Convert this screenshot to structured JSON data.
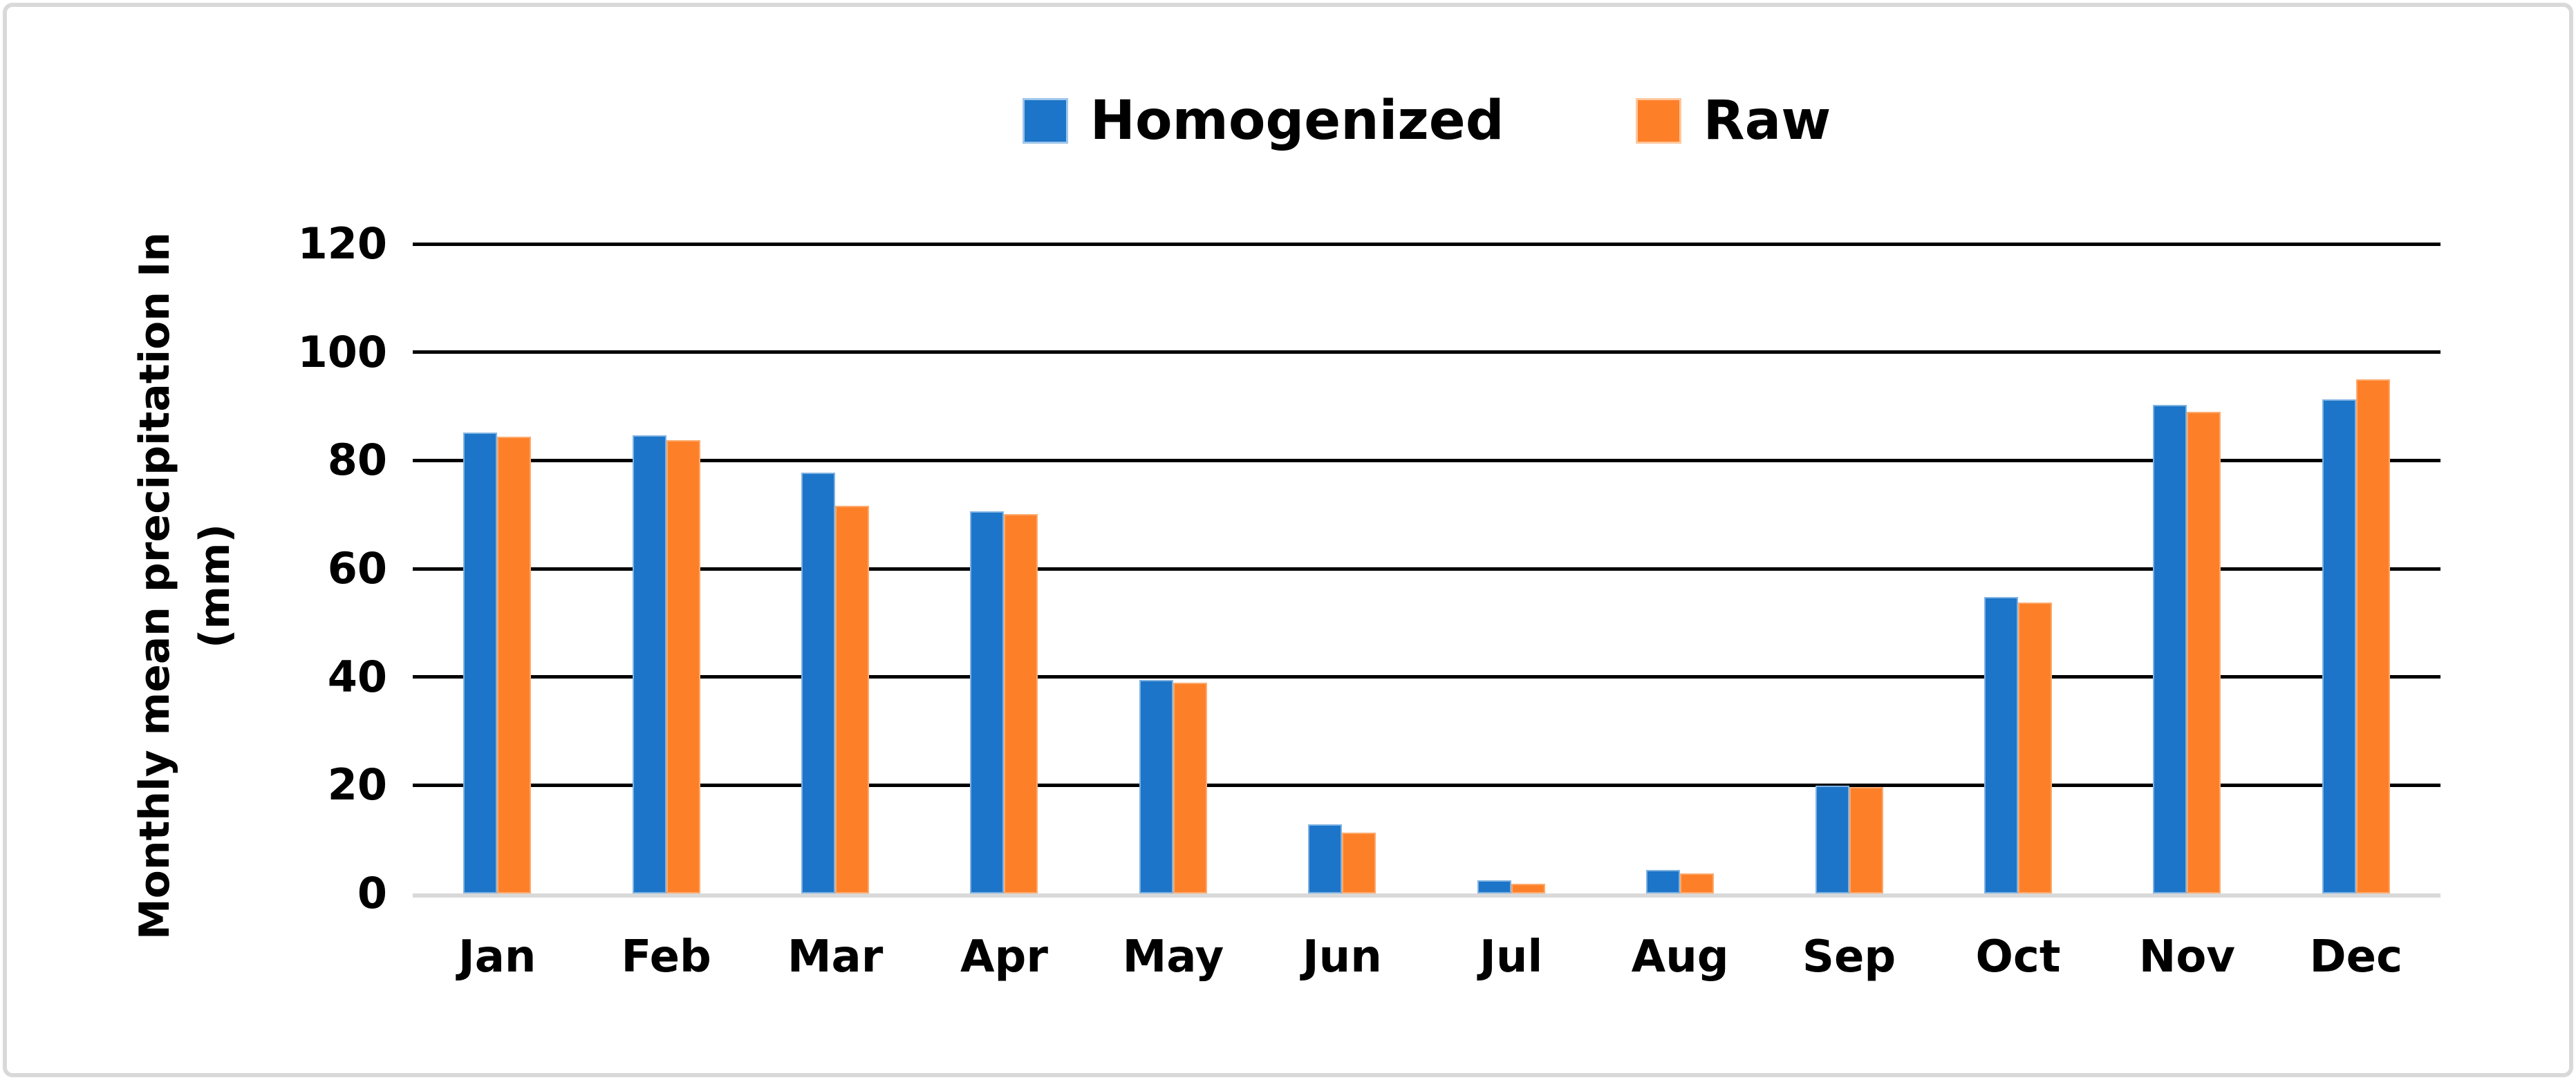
{
  "chart_data": {
    "type": "bar",
    "title": "",
    "categories": [
      "Jan",
      "Feb",
      "Mar",
      "Apr",
      "May",
      "Jun",
      "Jul",
      "Aug",
      "Sep",
      "Oct",
      "Nov",
      "Dec"
    ],
    "series": [
      {
        "name": "Homogenized",
        "color": "#1c75c8",
        "values": [
          85.2,
          84.7,
          77.8,
          70.6,
          39.5,
          12.8,
          2.4,
          4.3,
          19.9,
          54.8,
          90.2,
          91.3
        ]
      },
      {
        "name": "Raw",
        "color": "#fd8029",
        "values": [
          84.4,
          83.7,
          71.6,
          70.1,
          38.9,
          11.2,
          1.8,
          3.7,
          19.7,
          53.7,
          89.0,
          95.0
        ]
      }
    ],
    "xlabel": "",
    "ylabel": "Monthly mean precipitation In (mm)",
    "ylim": [
      0,
      120
    ],
    "ytick_step": 20,
    "grid": "horizontal",
    "gridline_color": "#000000",
    "baseline_color": "#d9d9d9",
    "legend_position": "top-center"
  },
  "y_axis": {
    "title_line1": "Monthly mean precipitation In",
    "title_line2": "(mm)",
    "ticks": [
      "0",
      "20",
      "40",
      "60",
      "80",
      "100",
      "120"
    ]
  }
}
